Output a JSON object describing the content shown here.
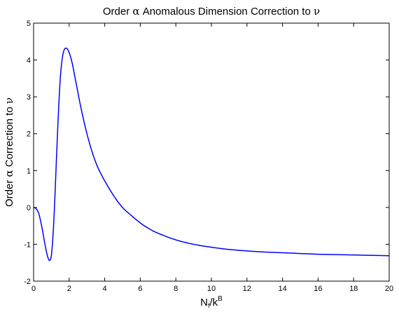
{
  "chart_data": {
    "type": "line",
    "title": {
      "prefix": "Order ",
      "symbol": "α",
      "suffix": " Anomalous Dimension Correction to ",
      "end_symbol": "ν"
    },
    "ylabel": {
      "prefix": "Order ",
      "symbol": "α",
      "suffix": " Correction to ",
      "end_symbol": "ν"
    },
    "xlabel": {
      "base": "N",
      "base_sub": "f",
      "mid": "/k",
      "sup": "B"
    },
    "xlim": [
      0,
      20
    ],
    "ylim": [
      -2,
      5
    ],
    "xticks": [
      0,
      2,
      4,
      6,
      8,
      10,
      12,
      14,
      16,
      18,
      20
    ],
    "yticks": [
      -2,
      -1,
      0,
      1,
      2,
      3,
      4,
      5
    ],
    "grid": false,
    "line_color": "#0000ff",
    "series": [
      {
        "x": [
          0,
          0.1,
          0.2,
          0.3,
          0.4,
          0.5,
          0.6,
          0.7,
          0.8,
          0.9,
          1.0,
          1.1,
          1.2,
          1.3,
          1.4,
          1.5,
          1.6,
          1.7,
          1.8,
          1.9,
          2.0,
          2.1,
          2.2,
          2.3,
          2.4,
          2.5,
          2.6,
          2.8,
          3.0,
          3.2,
          3.4,
          3.6,
          3.8,
          4.0,
          4.5,
          5.0,
          5.5,
          6.0,
          6.5,
          7.0,
          8.0,
          9.0,
          10.0,
          11.0,
          12.0,
          13.0,
          14.0,
          15.0,
          16.0,
          17.0,
          18.0,
          19.0,
          20.0
        ],
        "values": [
          0,
          -0.02,
          -0.07,
          -0.18,
          -0.38,
          -0.62,
          -0.9,
          -1.15,
          -1.35,
          -1.44,
          -1.3,
          -0.7,
          0.3,
          1.5,
          2.6,
          3.5,
          4.0,
          4.25,
          4.32,
          4.3,
          4.2,
          4.05,
          3.85,
          3.6,
          3.35,
          3.1,
          2.85,
          2.4,
          2.0,
          1.65,
          1.35,
          1.1,
          0.9,
          0.72,
          0.32,
          0.0,
          -0.22,
          -0.42,
          -0.58,
          -0.7,
          -0.88,
          -1.0,
          -1.08,
          -1.14,
          -1.18,
          -1.21,
          -1.23,
          -1.25,
          -1.27,
          -1.28,
          -1.29,
          -1.3,
          -1.31
        ]
      }
    ]
  }
}
